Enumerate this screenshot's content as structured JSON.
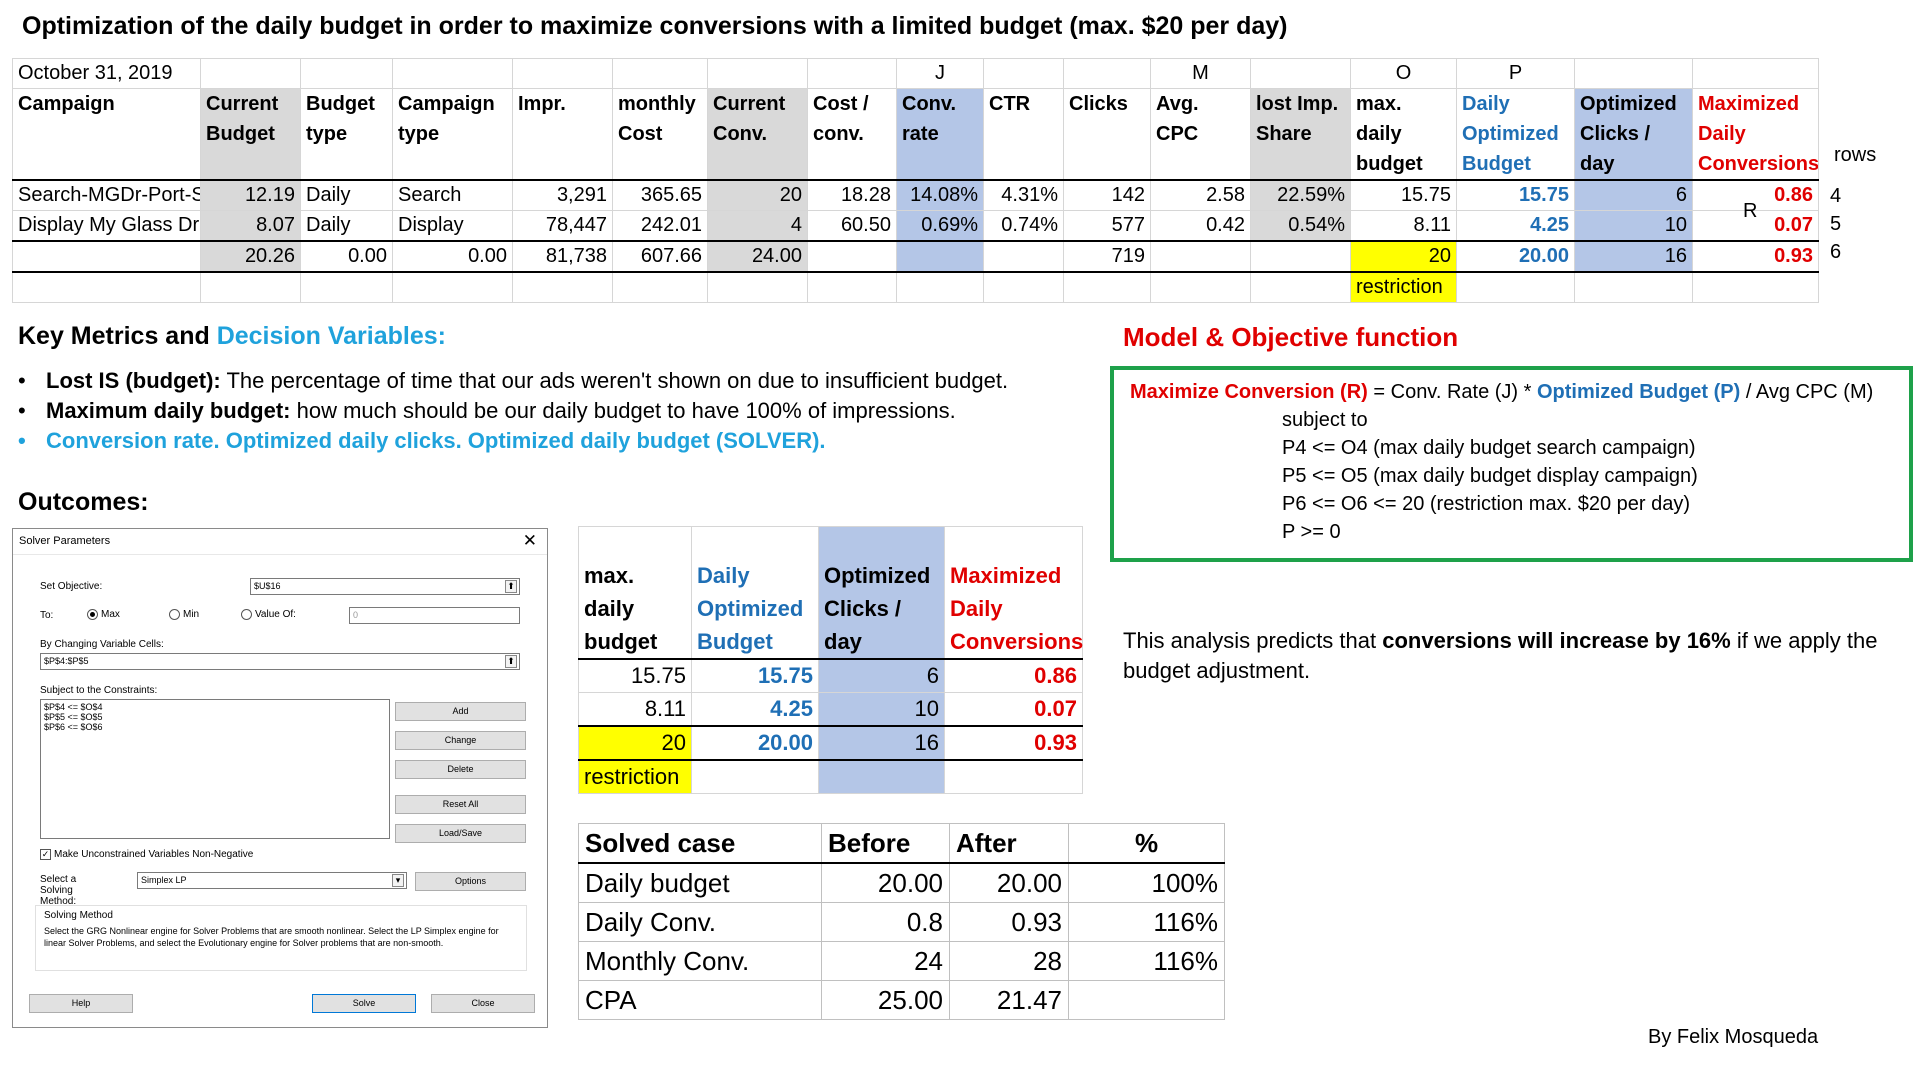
{
  "title": "Optimization of the daily budget in order to maximize conversions with a limited budget (max. $20 per day)",
  "big_table": {
    "date": "October 31, 2019",
    "col_letters": {
      "j": "J",
      "m": "M",
      "o": "O",
      "p": "P"
    },
    "headers": [
      "Campaign",
      "Current Budget",
      "Budget type",
      "Campaign type",
      "Impr.",
      "monthly Cost",
      "Current Conv.",
      "Cost / conv.",
      "Conv. rate",
      "CTR",
      "Clicks",
      "Avg. CPC",
      "lost Imp. Share",
      "max. daily budget",
      "Daily Optimized Budget",
      "Optimized Clicks / day",
      "Maximized Daily Conversions"
    ],
    "rows": [
      [
        "Search-MGDr-Port-Search",
        "12.19",
        "Daily",
        "Search",
        "3,291",
        "365.65",
        "20",
        "18.28",
        "14.08%",
        "4.31%",
        "142",
        "2.58",
        "22.59%",
        "15.75",
        "15.75",
        "6",
        "0.86"
      ],
      [
        "Display My Glass Dr",
        "8.07",
        "Daily",
        "Display",
        "78,447",
        "242.01",
        "4",
        "60.50",
        "0.69%",
        "0.74%",
        "577",
        "0.42",
        "0.54%",
        "8.11",
        "4.25",
        "10",
        "0.07"
      ]
    ],
    "totals": [
      "",
      "20.26",
      "0.00",
      "0.00",
      "81,738",
      "607.66",
      "24.00",
      "",
      "",
      "",
      "719",
      "",
      "",
      "20",
      "20.00",
      "16",
      "0.93"
    ],
    "restriction": "restriction",
    "rows_label": "rows",
    "row_numbers": [
      "4",
      "5",
      "6"
    ],
    "r_label": "R"
  },
  "key_metrics": {
    "title_a": "Key Metrics and ",
    "title_b": "Decision Variables:",
    "items": [
      {
        "bold": "Lost IS (budget):",
        "text": " The percentage of time that our ads weren't shown on due to insufficient budget."
      },
      {
        "bold": "Maximum daily budget:",
        "text": " how much should be our daily budget to have 100% of impressions."
      }
    ],
    "cyan_item": "Conversion rate. Optimized daily clicks. Optimized daily budget (SOLVER)."
  },
  "outcomes_title": "Outcomes:",
  "model": {
    "title": "Model & Objective function",
    "line1_a": "Maximize Conversion (R)",
    "line1_b": " =  Conv. Rate (J) * ",
    "line1_c": "Optimized Budget (P)",
    "line1_d": " / Avg CPC (M)",
    "constraints": [
      "subject to",
      "P4 <= O4  (max daily budget search campaign)",
      "P5 <= O5  (max daily budget display campaign)",
      "P6 <= O6 <= 20 (restriction max. $20 per day)",
      "P >= 0"
    ]
  },
  "prediction": {
    "a": "This analysis predicts that ",
    "b": "conversions will increase by 16%",
    "c": " if we apply the budget adjustment."
  },
  "solver": {
    "window_title": "Solver Parameters",
    "set_objective_label": "Set Objective:",
    "objective_value": "$U$16",
    "to_label": "To:",
    "max_label": "Max",
    "min_label": "Min",
    "value_of_label": "Value Of:",
    "value_of_value": "0",
    "changing_label": "By Changing Variable Cells:",
    "changing_value": "$P$4:$P$5",
    "constraints_label": "Subject to the Constraints:",
    "constraints": [
      "$P$4 <= $O$4",
      "$P$5 <= $O$5",
      "$P$6 <= $O$6"
    ],
    "add": "Add",
    "change": "Change",
    "delete": "Delete",
    "reset_all": "Reset All",
    "load_save": "Load/Save",
    "nonneg_label": "Make Unconstrained Variables Non-Negative",
    "method_label": "Select a Solving Method:",
    "method_value": "Simplex LP",
    "options": "Options",
    "solving_method_title": "Solving Method",
    "solving_method_text": "Select the GRG Nonlinear engine for Solver Problems that are smooth nonlinear. Select the LP Simplex engine for linear Solver Problems, and select the Evolutionary engine for Solver problems that are non-smooth.",
    "help": "Help",
    "solve": "Solve",
    "close": "Close"
  },
  "small_table": {
    "headers": [
      "max. daily budget",
      "Daily Optimized Budget",
      "Optimized Clicks / day",
      "Maximized Daily Conversions"
    ],
    "rows": [
      [
        "15.75",
        "15.75",
        "6",
        "0.86"
      ],
      [
        "8.11",
        "4.25",
        "10",
        "0.07"
      ],
      [
        "20",
        "20.00",
        "16",
        "0.93"
      ]
    ],
    "restriction": "restriction"
  },
  "solved_table": {
    "headers": [
      "Solved case",
      "Before",
      "After",
      "%"
    ],
    "rows": [
      [
        "Daily budget",
        "20.00",
        "20.00",
        "100%"
      ],
      [
        "Daily Conv.",
        "0.8",
        "0.93",
        "116%"
      ],
      [
        "Monthly Conv.",
        "24",
        "28",
        "116%"
      ],
      [
        "CPA",
        "25.00",
        "21.47",
        ""
      ]
    ]
  },
  "byline": "By Felix Mosqueda",
  "colors": {
    "gray": "#d9d9d9",
    "blue_fill": "#b4c6e7",
    "yellow": "#ffff00",
    "blue_text": "#1f6fb5",
    "red_text": "#e00000",
    "cyan_text": "#1fa2dc",
    "green_border": "#1ea14a"
  }
}
